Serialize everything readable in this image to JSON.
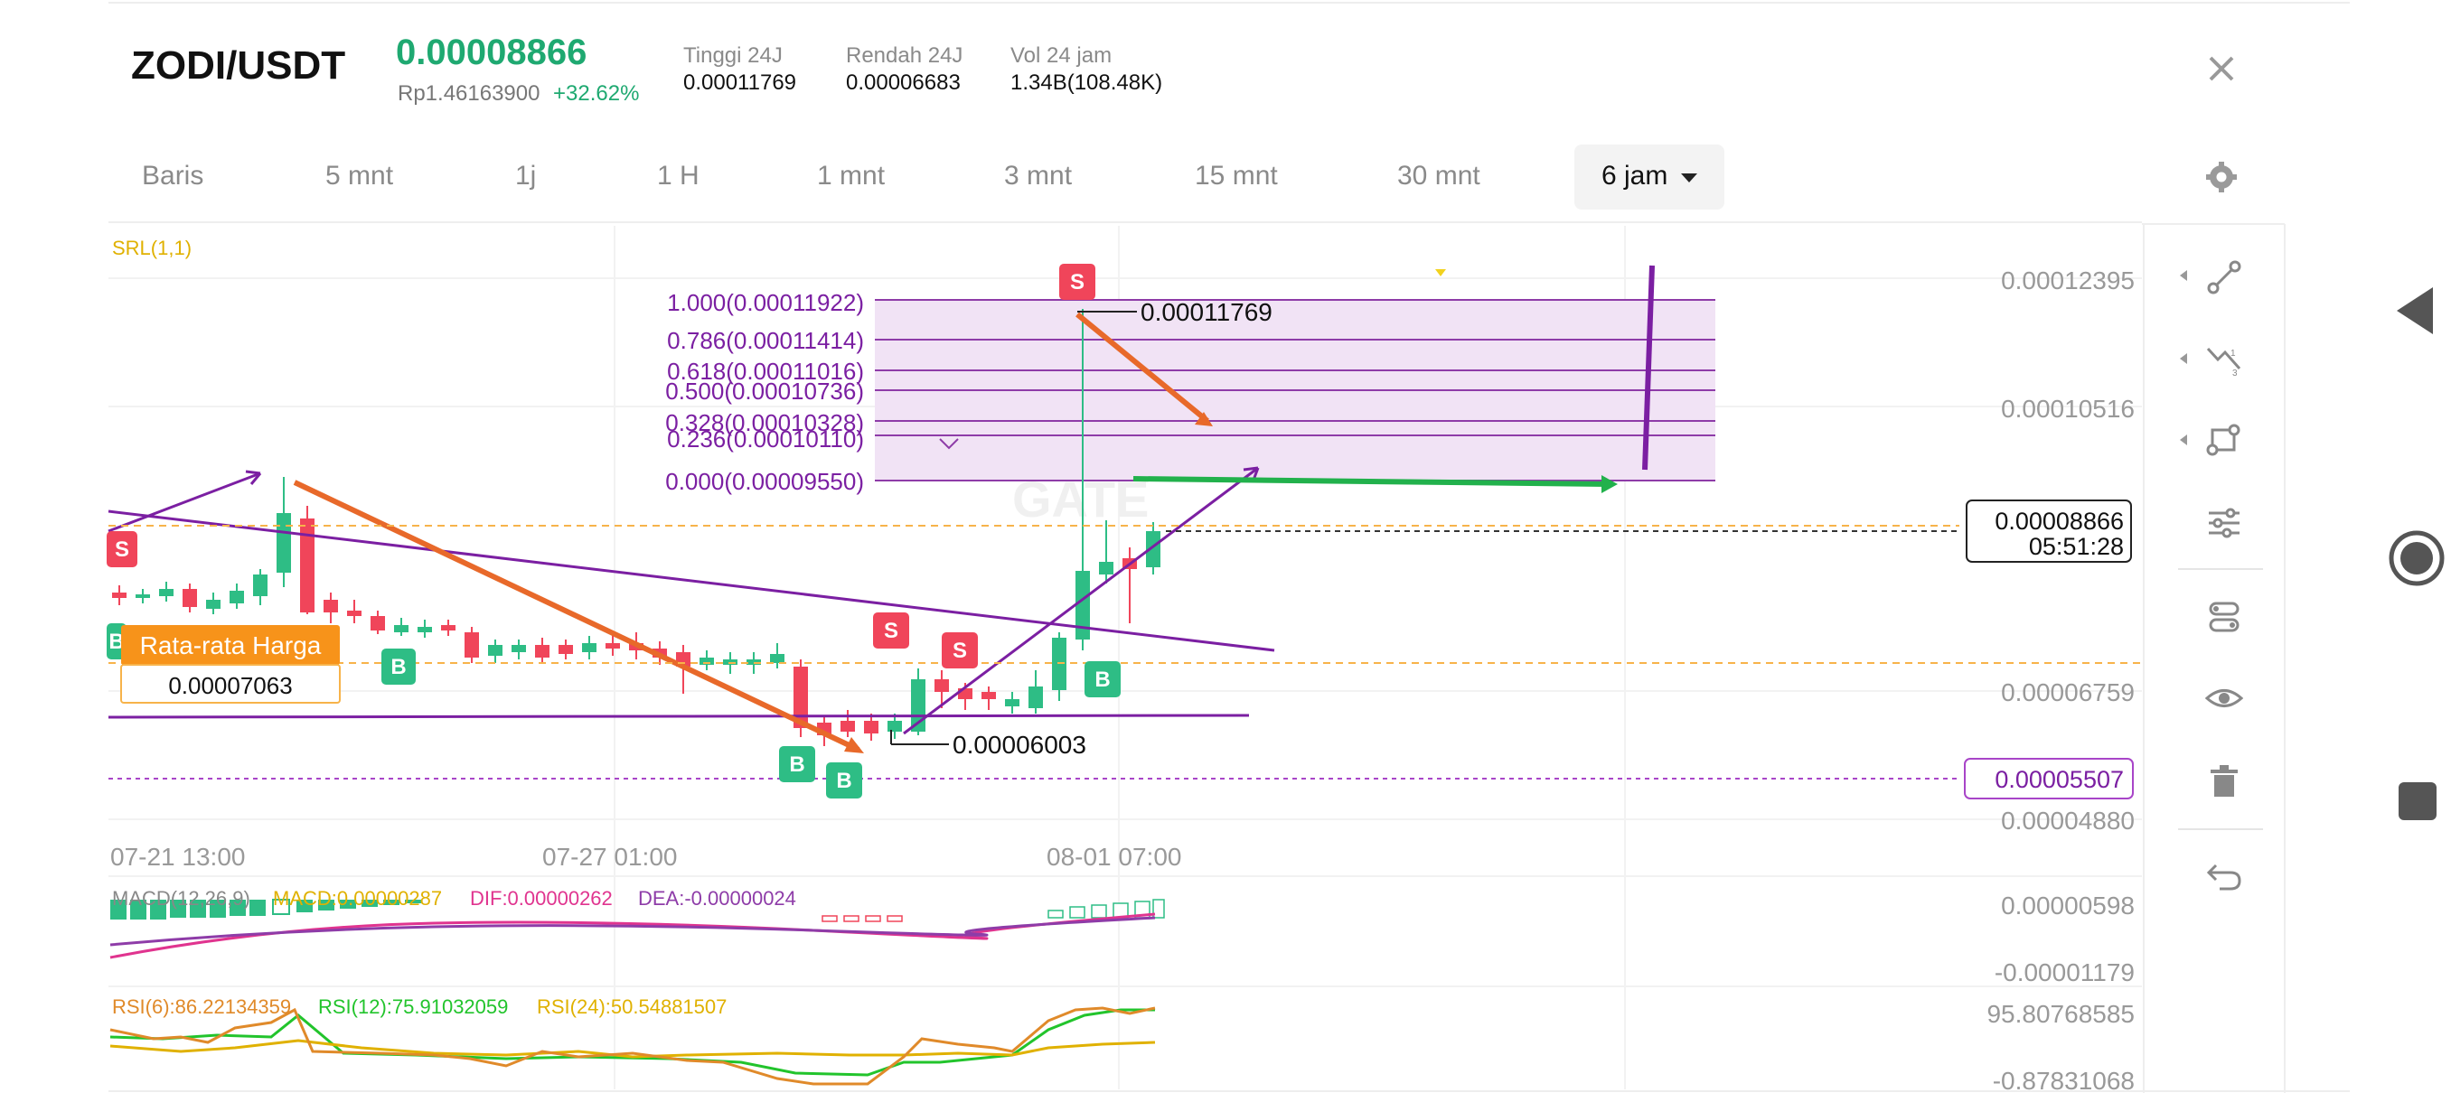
{
  "header": {
    "pair": "ZODI/USDT",
    "price": "0.00008866",
    "idr_price": "Rp1.46163900",
    "change": "+32.62%",
    "stats": [
      {
        "label": "Tinggi 24J",
        "value": "0.00011769"
      },
      {
        "label": "Rendah 24J",
        "value": "0.00006683"
      },
      {
        "label": "Vol 24 jam",
        "value": "1.34B(108.48K)"
      }
    ]
  },
  "timeframes": [
    "Baris",
    "5 mnt",
    "1j",
    "1 H",
    "1 mnt",
    "3 mnt",
    "15 mnt",
    "30 mnt"
  ],
  "active_timeframe": "6 jam",
  "chart": {
    "indicator_label": "SRL(1,1)",
    "price_axis": [
      "0.00012395",
      "0.00010516",
      "0.00006759",
      "0.00004880"
    ],
    "time_axis": [
      "07-21 13:00",
      "07-27 01:00",
      "08-01 07:00"
    ],
    "fib_levels": [
      "1.000(0.00011922)",
      "0.786(0.00011414)",
      "0.618(0.00011016)",
      "0.500(0.00010736)",
      "0.328(0.00010328)",
      "0.236(0.00010110)",
      "0.000(0.00009550)"
    ],
    "high_marker": "0.00011769",
    "low_marker": "0.00006003",
    "current_price": "0.00008866",
    "countdown": "05:51:28",
    "avg_price_label": "Rata-rata Harga",
    "avg_price_value": "0.00007063",
    "alert_price": "0.00005507",
    "watermark": "GATE",
    "colors": {
      "up": "#2ebd85",
      "down": "#f0455a",
      "fib": "#7b1fa2",
      "orange": "#e8692a",
      "green_arrow": "#22b14c",
      "avg": "#f7931a"
    }
  },
  "macd": {
    "label": "MACD(12,26,9)",
    "macd": "MACD:0.00000287",
    "dif": "DIF:0.00000262",
    "dea": "DEA:-0.00000024",
    "axis": [
      "0.00000598",
      "-0.00001179"
    ]
  },
  "rsi": {
    "rsi6": "RSI(6):86.22134359",
    "rsi12": "RSI(12):75.91032059",
    "rsi24": "RSI(24):50.54881507",
    "axis": [
      "95.80768585",
      "-0.87831068"
    ]
  },
  "toolbar": [
    "line-tool-icon",
    "trend-tool-icon",
    "shape-tool-icon",
    "settings-tool-icon",
    "layers-icon",
    "eye-icon",
    "trash-icon",
    "undo-icon"
  ],
  "android_nav": [
    "back-icon",
    "home-icon",
    "recents-icon"
  ]
}
